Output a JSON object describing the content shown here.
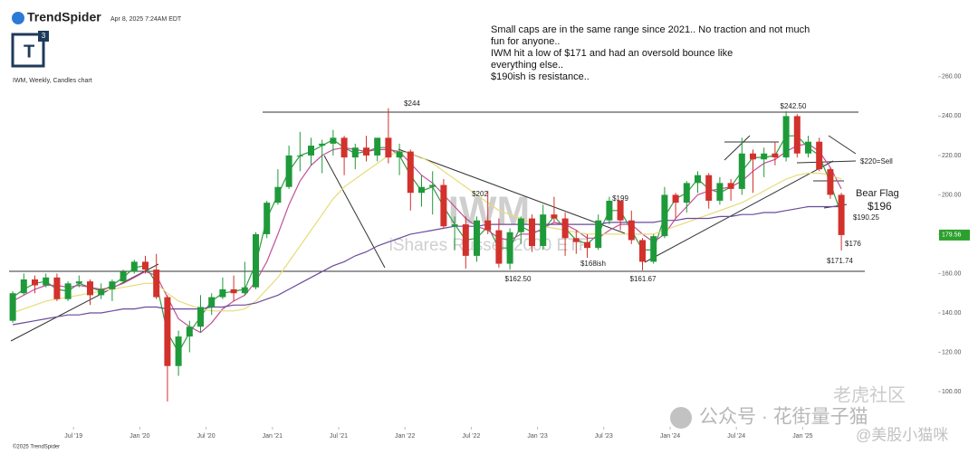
{
  "header": {
    "brand": "TrendSpider",
    "timestamp": "Apr 8, 2025 7:24AM EDT",
    "logo": "T",
    "logo_sup": "3",
    "footer": "©2025 TrendSpider"
  },
  "note": [
    "Small caps are in the same range since 2021.. No traction and not much",
    "fun for anyone..",
    "IWM hit a low of $171 and had an oversold bounce like",
    "everything else..",
    "$190ish is resistance.."
  ],
  "watermark": {
    "symbol": "IWM",
    "name": "iShares Russell 2000 ETF",
    "wechat": "公众号 · 花街量子猫",
    "community": "老虎社区",
    "handle": "@美股小猫咪"
  },
  "chart_data": {
    "type": "candlestick",
    "title": "IWM, Weekly, Candles chart",
    "categories": [
      null,
      null,
      null,
      null,
      null,
      null,
      "Jul '19",
      null,
      null,
      null,
      null,
      null,
      "Jan '20",
      null,
      null,
      null,
      null,
      null,
      "Jul '20",
      null,
      null,
      null,
      null,
      null,
      "Jan '21",
      null,
      null,
      null,
      null,
      null,
      "Jul '21",
      null,
      null,
      null,
      null,
      null,
      "Jan '22",
      null,
      null,
      null,
      null,
      null,
      "Jul '22",
      null,
      null,
      null,
      null,
      null,
      "Jan '23",
      null,
      null,
      null,
      null,
      null,
      "Jul '23",
      null,
      null,
      null,
      null,
      null,
      "Jan '24",
      null,
      null,
      null,
      null,
      null,
      "Jul '24",
      null,
      null,
      null,
      null,
      null,
      "Jan '25",
      null,
      null,
      null
    ],
    "open": [
      136,
      150,
      157,
      154,
      158,
      147,
      155,
      156,
      149,
      152,
      156,
      161,
      166,
      162,
      148,
      113,
      128,
      133,
      143,
      148,
      152,
      150,
      153,
      180,
      196,
      204,
      220,
      220,
      225,
      226,
      229,
      219,
      224,
      220,
      229,
      219,
      222,
      201,
      204,
      205,
      184,
      185,
      169,
      187,
      182,
      165,
      181,
      188,
      174,
      190,
      188,
      178,
      176,
      173,
      187,
      197,
      187,
      177,
      166,
      179,
      200,
      196,
      206,
      210,
      197,
      206,
      203,
      221,
      218,
      221,
      219,
      240,
      221,
      227,
      213,
      200
    ],
    "high": [
      151,
      160,
      159,
      160,
      160,
      156,
      159,
      157,
      155,
      157,
      162,
      167,
      169,
      170,
      149,
      131,
      136,
      149,
      150,
      158,
      159,
      166,
      181,
      197,
      213,
      225,
      232,
      229,
      228,
      233,
      230,
      226,
      230,
      229,
      244,
      226,
      223,
      210,
      212,
      208,
      189,
      189,
      189,
      202,
      188,
      183,
      189,
      190,
      195,
      199,
      191,
      182,
      180,
      190,
      199,
      197,
      192,
      178,
      180,
      204,
      201,
      207,
      212,
      211,
      209,
      208,
      229,
      223,
      224,
      227,
      242.5,
      241,
      230,
      229,
      214,
      201
    ],
    "low": [
      135,
      149,
      150,
      153,
      146,
      146,
      153,
      144,
      147,
      146,
      155,
      160,
      160,
      147,
      95,
      108,
      120,
      130,
      139,
      147,
      146,
      149,
      152,
      178,
      195,
      203,
      212,
      215,
      211,
      220,
      210,
      213,
      217,
      217,
      216,
      210,
      192,
      194,
      190,
      183,
      172,
      162.5,
      166,
      180,
      163,
      162,
      175,
      171,
      172,
      186,
      169,
      170,
      168,
      172,
      185,
      182,
      175,
      161.67,
      165,
      178,
      188,
      191,
      201,
      193,
      195,
      197,
      200,
      201,
      209,
      215,
      217,
      219,
      219,
      212,
      198,
      171.74
    ],
    "close": [
      150,
      157,
      154,
      158,
      147,
      155,
      156,
      149,
      152,
      156,
      161,
      166,
      162,
      148,
      113,
      128,
      133,
      143,
      148,
      152,
      150,
      153,
      180,
      196,
      204,
      220,
      220,
      225,
      226,
      229,
      219,
      224,
      220,
      229,
      219,
      222,
      201,
      204,
      205,
      184,
      185,
      169,
      187,
      182,
      165,
      181,
      188,
      174,
      190,
      188,
      178,
      176,
      173,
      187,
      197,
      187,
      177,
      166,
      179,
      200,
      196,
      206,
      210,
      197,
      206,
      203,
      221,
      218,
      221,
      219,
      240,
      221,
      227,
      213,
      200,
      179.56
    ],
    "up_color": "#1f9a3a",
    "down_color": "#d2312c",
    "series": [
      {
        "color": "#2e9e3e",
        "values": [
          148,
          152,
          155,
          156,
          152,
          151,
          155,
          153,
          151,
          154,
          158,
          163,
          164,
          155,
          130,
          120,
          130,
          138,
          146,
          150,
          151,
          152,
          165,
          188,
          200,
          212,
          220,
          222,
          225,
          228,
          224,
          221,
          222,
          224,
          224,
          220,
          210,
          202,
          204,
          194,
          185,
          177,
          178,
          184,
          173,
          173,
          184,
          181,
          182,
          189,
          183,
          177,
          175,
          180,
          192,
          192,
          182,
          172,
          172,
          189,
          198,
          201,
          208,
          203,
          201,
          204,
          212,
          219,
          219,
          220,
          230,
          230,
          224,
          220,
          206,
          190
        ]
      },
      {
        "color": "#c0509b",
        "values": [
          146,
          149,
          152,
          154,
          154,
          153,
          154,
          153,
          152,
          153,
          155,
          158,
          161,
          159,
          148,
          137,
          133,
          130,
          135,
          142,
          146,
          149,
          156,
          166,
          180,
          195,
          207,
          215,
          220,
          223,
          224,
          223,
          222,
          223,
          223,
          222,
          216,
          210,
          206,
          200,
          194,
          188,
          184,
          182,
          178,
          177,
          180,
          180,
          183,
          186,
          185,
          182,
          178,
          178,
          182,
          185,
          185,
          180,
          176,
          180,
          188,
          194,
          200,
          202,
          203,
          204,
          207,
          212,
          216,
          218,
          222,
          225,
          226,
          222,
          214,
          203
        ]
      },
      {
        "color": "#e6dc78",
        "values": [
          140,
          142,
          144,
          146,
          147,
          148,
          149,
          150,
          151,
          152,
          153,
          154,
          155,
          155,
          150,
          146,
          144,
          142,
          141,
          141,
          141,
          142,
          146,
          152,
          158,
          166,
          174,
          182,
          190,
          198,
          204,
          208,
          212,
          216,
          220,
          222,
          221,
          219,
          216,
          212,
          208,
          204,
          200,
          196,
          192,
          190,
          188,
          186,
          184,
          183,
          182,
          181,
          180,
          180,
          180,
          180,
          180,
          180,
          180,
          182,
          184,
          186,
          188,
          190,
          192,
          194,
          196,
          199,
          202,
          205,
          208,
          210,
          211,
          211,
          210,
          208
        ]
      },
      {
        "color": "#6b4a9c",
        "values": [
          134,
          135,
          136,
          137,
          138,
          139,
          139,
          140,
          140,
          141,
          142,
          142,
          143,
          143,
          142,
          142,
          142,
          142,
          143,
          143,
          144,
          144,
          145,
          147,
          149,
          152,
          155,
          158,
          161,
          164,
          166,
          169,
          171,
          174,
          176,
          178,
          180,
          181,
          182,
          183,
          184,
          184,
          184,
          185,
          185,
          185,
          185,
          185,
          185,
          185,
          185,
          185,
          185,
          185,
          186,
          186,
          186,
          186,
          186,
          187,
          187,
          188,
          188,
          188,
          189,
          189,
          190,
          190,
          191,
          191,
          192,
          193,
          194,
          194,
          194,
          194
        ]
      }
    ],
    "ylim": [
      83,
      265
    ],
    "yticks": [
      {
        "value": 100,
        "label": "100.00"
      },
      {
        "value": 120,
        "label": "120.00"
      },
      {
        "value": 140,
        "label": "140.00"
      },
      {
        "value": 160,
        "label": "160.00"
      },
      {
        "value": 180,
        "label": "180.00"
      },
      {
        "value": 200,
        "label": "200.00"
      },
      {
        "value": 220,
        "label": "220.00"
      },
      {
        "value": 240,
        "label": "240.00"
      },
      {
        "value": 260,
        "label": "260.00"
      }
    ],
    "last_price": 179.56,
    "last_price_color": "#2ca02c",
    "annotations": [
      "$244",
      "$242.50",
      "$220=Sell",
      "Bear Flag",
      "$196",
      "$190.25",
      "$176",
      "$171.74",
      "$162.50",
      "$168ish",
      "$161.67",
      "$199",
      "$202"
    ]
  }
}
